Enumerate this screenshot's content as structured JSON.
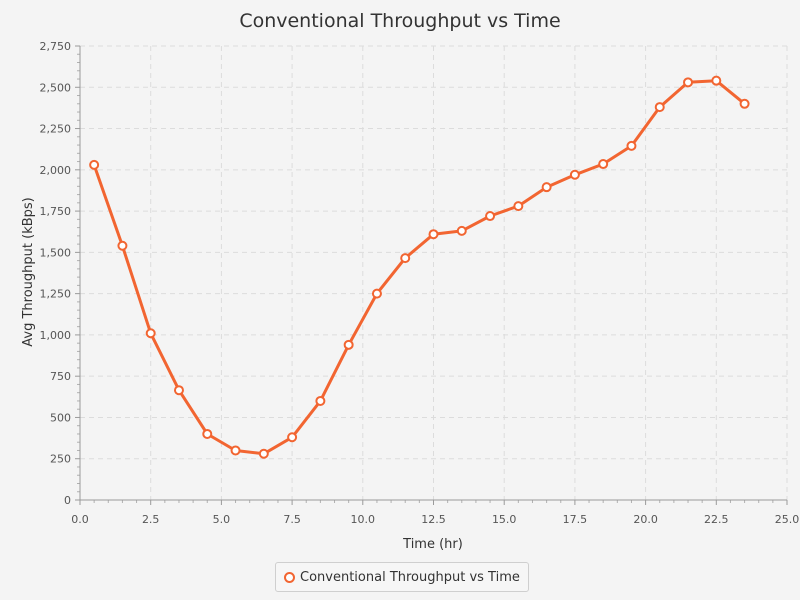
{
  "chart_data": {
    "type": "line",
    "title": "Conventional Throughput vs Time",
    "xlabel": "Time (hr)",
    "ylabel": "Avg Throughput (kBps)",
    "xlim": [
      0,
      25
    ],
    "ylim": [
      0,
      2750
    ],
    "x_ticks": [
      "0.0",
      "2.5",
      "5.0",
      "7.5",
      "10.0",
      "12.5",
      "15.0",
      "17.5",
      "20.0",
      "22.5",
      "25.0"
    ],
    "y_ticks": [
      "0",
      "250",
      "500",
      "750",
      "1,000",
      "1,250",
      "1,500",
      "1,750",
      "2,000",
      "2,250",
      "2,500",
      "2,750"
    ],
    "grid": true,
    "legend_position": "bottom-center",
    "series": [
      {
        "name": "Conventional Throughput vs Time",
        "color": "#f26531",
        "x": [
          0.5,
          1.5,
          2.5,
          3.5,
          4.5,
          5.5,
          6.5,
          7.5,
          8.5,
          9.5,
          10.5,
          11.5,
          12.5,
          13.5,
          14.5,
          15.5,
          16.5,
          17.5,
          18.5,
          19.5,
          20.5,
          21.5,
          22.5,
          23.5
        ],
        "y": [
          2030,
          1540,
          1010,
          665,
          400,
          300,
          280,
          380,
          600,
          940,
          1250,
          1465,
          1610,
          1630,
          1720,
          1780,
          1895,
          1970,
          2035,
          2145,
          2380,
          2530,
          2540,
          2400
        ]
      }
    ]
  }
}
